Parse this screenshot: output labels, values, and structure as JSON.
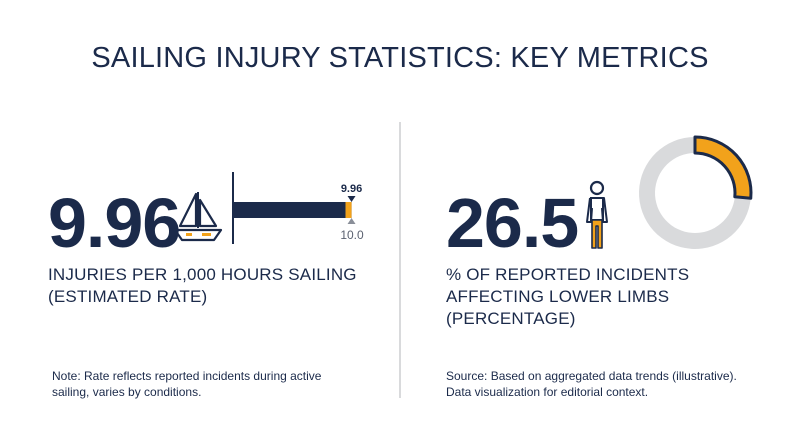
{
  "title": "SAILING INJURY STATISTICS: KEY METRICS",
  "left": {
    "value": "9.96",
    "label_lines": [
      "INJURIES PER 1,000 HOURS SAILING",
      "(ESTIMATED RATE)"
    ],
    "note_lines": [
      "Note: Rate reflects reported incidents during active",
      "sailing, varies by conditions."
    ],
    "icon": "sailboat-icon"
  },
  "right": {
    "value": "26.5",
    "label_lines": [
      "% OF REPORTED INCIDENTS",
      "AFFECTING LOWER LIMBS",
      "(PERCENTAGE)"
    ],
    "note_lines": [
      "Source: Based on aggregated data trends (illustrative).",
      "Data visualization for editorial context."
    ],
    "icon": "person-icon"
  },
  "chart_data": [
    {
      "type": "bar",
      "value": 9.96,
      "max": 10.0,
      "value_label": "9.96",
      "max_label": "10.0",
      "colors": {
        "bar": "#1b2a4a",
        "accent": "#f2a21b",
        "track": "#d9dadc"
      }
    },
    {
      "type": "pie",
      "variant": "donut",
      "value": 26.5,
      "max": 100,
      "colors": {
        "highlight": "#f2a21b",
        "track": "#d9dadc",
        "outline": "#1b2a4a"
      }
    }
  ]
}
